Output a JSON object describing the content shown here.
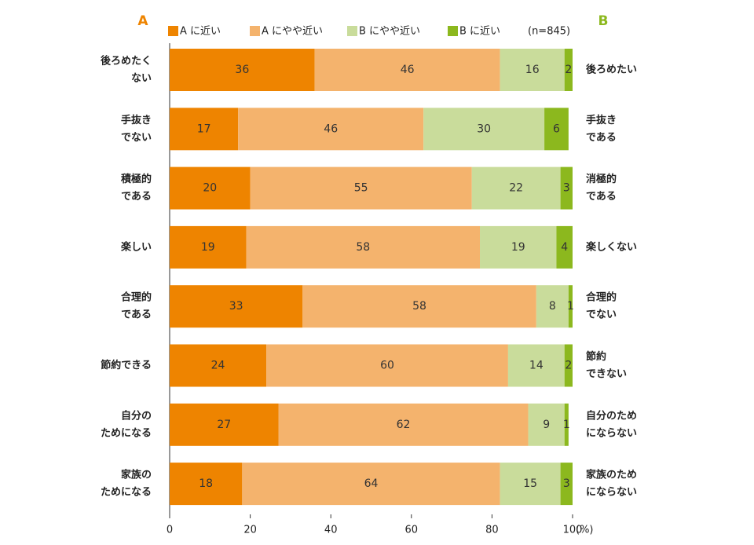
{
  "chart_data": {
    "type": "stacked-barh",
    "left_heading": "A",
    "right_heading": "B",
    "note": "(n=845)",
    "x_unit": "(%)",
    "categories": [
      [
        "後ろめたく",
        "ない"
      ],
      [
        "手抜き",
        "でない"
      ],
      [
        "積極的",
        "である"
      ],
      [
        "楽しい"
      ],
      [
        "合理的",
        "である"
      ],
      [
        "節約できる"
      ],
      [
        "自分の",
        "ためになる"
      ],
      [
        "家族の",
        "ためになる"
      ]
    ],
    "right_categories": [
      [
        "後ろめたい"
      ],
      [
        "手抜き",
        "である"
      ],
      [
        "消極的",
        "である"
      ],
      [
        "楽しくない"
      ],
      [
        "合理的",
        "でない"
      ],
      [
        "節約",
        "できない"
      ],
      [
        "自分のため",
        "にならない"
      ],
      [
        "家族のため",
        "にならない"
      ]
    ],
    "series": [
      {
        "name": "A に近い",
        "color": "#ee8400",
        "values": [
          36,
          17,
          20,
          19,
          33,
          24,
          27,
          18
        ]
      },
      {
        "name": "A にやや近い",
        "color": "#f4b36d",
        "values": [
          46,
          46,
          55,
          58,
          58,
          60,
          62,
          64
        ]
      },
      {
        "name": "B にやや近い",
        "color": "#c9dc9b",
        "values": [
          16,
          30,
          22,
          19,
          8,
          14,
          9,
          15
        ]
      },
      {
        "name": "B に近い",
        "color": "#8cb81e",
        "values": [
          2,
          6,
          3,
          4,
          1,
          2,
          1,
          3
        ]
      }
    ],
    "xlim": [
      0,
      100
    ],
    "xticks": [
      0,
      20,
      40,
      60,
      80,
      100
    ]
  }
}
